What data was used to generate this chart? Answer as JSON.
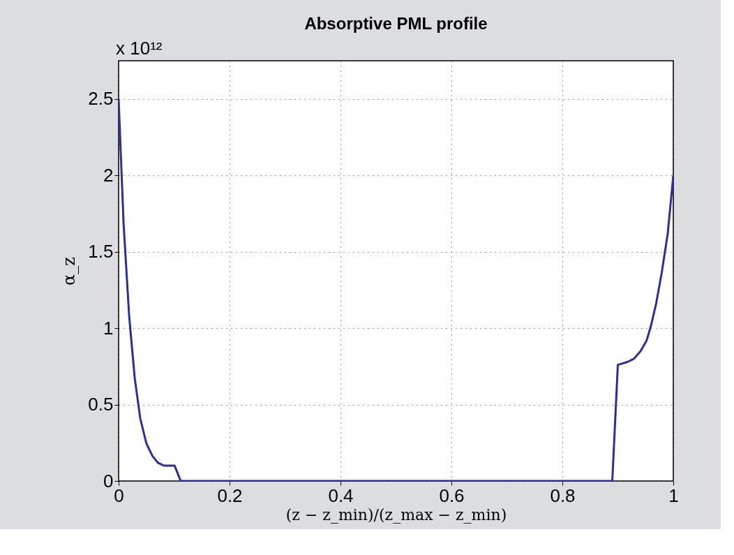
{
  "chart_data": {
    "type": "line",
    "title": "Absorptive PML profile",
    "xlabel": "(z − z_min)/(z_max − z_min)",
    "ylabel": "α_z",
    "annotations": [
      "x 10¹²"
    ],
    "x": [
      0,
      0.009,
      0.019,
      0.029,
      0.039,
      0.05,
      0.061,
      0.071,
      0.082,
      0.101,
      0.112,
      0.89,
      0.9,
      0.918,
      0.929,
      0.941,
      0.952,
      0.96,
      0.969,
      0.979,
      0.99,
      1.0
    ],
    "series": [
      {
        "color": "#2b2f9a",
        "values": [
          2.5,
          1.68,
          1.08,
          0.675,
          0.41,
          0.246,
          0.164,
          0.119,
          0.1,
          0.1,
          0,
          0,
          0.76,
          0.78,
          0.8,
          0.85,
          0.92,
          1.02,
          1.16,
          1.36,
          1.62,
          2.0
        ]
      }
    ],
    "xlim": [
      0,
      1
    ],
    "ylim": [
      0,
      2.75
    ],
    "xticks": [
      0,
      0.2,
      0.4,
      0.6,
      0.8,
      1
    ],
    "yticks": [
      0,
      0.5,
      1,
      1.5,
      2,
      2.5
    ],
    "grid": true,
    "line_style": "solid"
  }
}
